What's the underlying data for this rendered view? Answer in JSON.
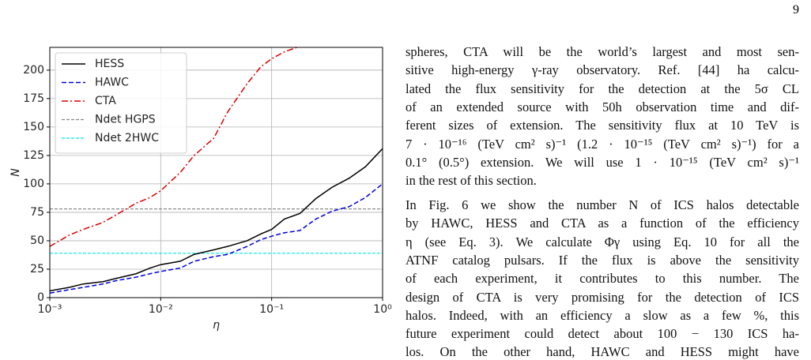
{
  "page_number": "9",
  "chart_data": {
    "type": "line",
    "x": [
      0.001,
      0.0015,
      0.002,
      0.003,
      0.004,
      0.006,
      0.008,
      0.01,
      0.015,
      0.02,
      0.03,
      0.04,
      0.06,
      0.08,
      0.1,
      0.13,
      0.18,
      0.25,
      0.35,
      0.5,
      0.7,
      1
    ],
    "series": [
      {
        "name": "HESS",
        "color": "#000000",
        "linestyle": "solid",
        "values": [
          6,
          9,
          12,
          14,
          17,
          21,
          26,
          29,
          32,
          38,
          42,
          45,
          50,
          56,
          60,
          69,
          74,
          87,
          97,
          105,
          115,
          131
        ]
      },
      {
        "name": "HAWC",
        "color": "#0000dd",
        "linestyle": "dashed",
        "values": [
          4,
          7,
          9,
          12,
          15,
          18,
          21,
          23,
          26,
          32,
          36,
          38,
          45,
          51,
          54,
          57,
          59,
          69,
          76,
          80,
          88,
          100
        ]
      },
      {
        "name": "CTA",
        "color": "#dd0000",
        "linestyle": "dashdot",
        "values": [
          45,
          55,
          60,
          66,
          73,
          83,
          88,
          94,
          110,
          125,
          140,
          163,
          188,
          203,
          210,
          216,
          221,
          null,
          null,
          null,
          null,
          null
        ]
      }
    ],
    "reference_lines": [
      {
        "name": "Ndet HGPS",
        "color": "#888888",
        "value": 78
      },
      {
        "name": "Ndet 2HWC",
        "color": "#00e5e5",
        "value": 39
      }
    ],
    "xlabel": "η",
    "ylabel": "N",
    "xscale": "log",
    "grid": true,
    "legend": "upper left",
    "xlim": [
      0.001,
      1
    ],
    "xticks": [
      {
        "value": 0.001,
        "label": "10⁻³"
      },
      {
        "value": 0.01,
        "label": "10⁻²"
      },
      {
        "value": 0.1,
        "label": "10⁻¹"
      },
      {
        "value": 1,
        "label": "10⁰"
      }
    ],
    "ylim": [
      0,
      220
    ],
    "yticks": [
      0,
      25,
      50,
      75,
      100,
      125,
      150,
      175,
      200
    ]
  },
  "text": {
    "paragraphs": [
      [
        "spheres, CTA will be the world’s largest and most sen-",
        "sitive high-energy γ-ray observatory. Ref. [44] ha calcu-",
        "lated the flux sensitivity for the detection at the 5σ CL",
        "of an extended source with 50h observation time and dif-",
        "ferent sizes of extension. The sensitivity flux at 10 TeV is",
        "7 · 10⁻¹⁶ (TeV cm² s)⁻¹ (1.2 · 10⁻¹⁵ (TeV cm² s)⁻¹) for a",
        "0.1° (0.5°) extension. We will use 1 · 10⁻¹⁵ (TeV cm² s)⁻¹",
        "in the rest of this section."
      ],
      [
        "In Fig. 6 we show the number N of ICS halos detectable",
        "by HAWC, HESS and CTA as a function of the efficiency",
        "η (see Eq. 3). We calculate Φγ using Eq. 10 for all the",
        "ATNF catalog pulsars. If the flux is above the sensitivity",
        "of each experiment, it contributes to this number. The",
        "design of CTA is very promising for the detection of ICS",
        "halos. Indeed, with an efficiency a slow as a few %, this",
        "future experiment could detect about 100 − 130 ICS ha-",
        "los. On the other hand, HAWC and HESS might have"
      ]
    ]
  }
}
